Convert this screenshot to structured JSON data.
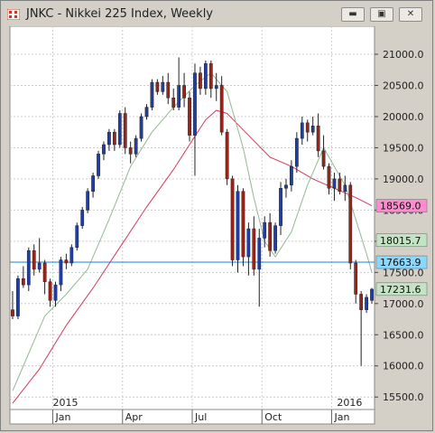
{
  "window": {
    "title": "JNKC - Nikkei 225 Index, Weekly",
    "icon": "app-icon",
    "buttons": [
      {
        "name": "minimize",
        "glyph": "▬"
      },
      {
        "name": "maximize",
        "glyph": "▣"
      },
      {
        "name": "close",
        "glyph": "✕"
      }
    ]
  },
  "chart_data": {
    "type": "candlestick",
    "ylim": [
      15300,
      21450
    ],
    "y_ticks": [
      "15500.0",
      "16000.0",
      "16500.0",
      "17000.0",
      "17500.0",
      "18000.0",
      "18500.0",
      "19000.0",
      "19500.0",
      "20000.0",
      "20500.0",
      "21000.0"
    ],
    "x_labels": [
      {
        "label": "Jan",
        "week": 8
      },
      {
        "label": "Apr",
        "week": 21
      },
      {
        "label": "Jul",
        "week": 34
      },
      {
        "label": "Oct",
        "week": 47
      },
      {
        "label": "Jan",
        "week": 60
      }
    ],
    "year_labels": [
      {
        "label": "2015",
        "week": 8
      },
      {
        "label": "2016",
        "week": 61
      }
    ],
    "price_tags": [
      {
        "value": "18569.0",
        "bg": "#ff8ccf"
      },
      {
        "value": "18015.7",
        "bg": "#c2e4c2"
      },
      {
        "value": "17663.9",
        "bg": "#8ad8ff"
      },
      {
        "value": "17231.6",
        "bg": "#c2e4c2"
      }
    ],
    "h_line": {
      "value": 17663.9,
      "color": "#1e82dc"
    },
    "colors": {
      "up": "#1f3ea8",
      "down": "#9b2318",
      "ma_fast": "#93b893",
      "ma_slow": "#d23b5a",
      "grid": "#cccccc"
    },
    "candles": [
      [
        16900,
        17200,
        16750,
        16800
      ],
      [
        16800,
        17450,
        16750,
        17400
      ],
      [
        17400,
        17600,
        17250,
        17300
      ],
      [
        17300,
        17900,
        17200,
        17850
      ],
      [
        17850,
        17950,
        17450,
        17550
      ],
      [
        17550,
        18050,
        17500,
        17650
      ],
      [
        17650,
        17700,
        17150,
        17350
      ],
      [
        17350,
        17400,
        16950,
        17050
      ],
      [
        17050,
        17350,
        16950,
        17300
      ],
      [
        17300,
        17750,
        17200,
        17700
      ],
      [
        17700,
        17800,
        17550,
        17650
      ],
      [
        17650,
        17950,
        17600,
        17900
      ],
      [
        17900,
        18300,
        17850,
        18250
      ],
      [
        18250,
        18550,
        18200,
        18500
      ],
      [
        18500,
        18850,
        18450,
        18800
      ],
      [
        18800,
        19100,
        18700,
        19050
      ],
      [
        19050,
        19450,
        19000,
        19400
      ],
      [
        19400,
        19600,
        19300,
        19550
      ],
      [
        19550,
        19800,
        19450,
        19750
      ],
      [
        19750,
        19800,
        19450,
        19550
      ],
      [
        19550,
        20100,
        19500,
        20050
      ],
      [
        20050,
        20150,
        19400,
        19500
      ],
      [
        19500,
        19600,
        19250,
        19400
      ],
      [
        19400,
        19700,
        19350,
        19650
      ],
      [
        19650,
        20050,
        19600,
        20000
      ],
      [
        20000,
        20200,
        19950,
        20150
      ],
      [
        20150,
        20600,
        20100,
        20550
      ],
      [
        20550,
        20600,
        20350,
        20400
      ],
      [
        20400,
        20650,
        20350,
        20550
      ],
      [
        20550,
        20700,
        20200,
        20300
      ],
      [
        20300,
        20450,
        20100,
        20150
      ],
      [
        20150,
        20950,
        20100,
        20500
      ],
      [
        20500,
        20700,
        20150,
        20300
      ],
      [
        20300,
        20400,
        19600,
        19700
      ],
      [
        19700,
        20850,
        19050,
        20700
      ],
      [
        20700,
        20800,
        20350,
        20450
      ],
      [
        20450,
        20900,
        20350,
        20850
      ],
      [
        20850,
        20900,
        20300,
        20450
      ],
      [
        20450,
        20700,
        20250,
        20500
      ],
      [
        20500,
        20650,
        19700,
        19750
      ],
      [
        19750,
        19800,
        18900,
        19000
      ],
      [
        19000,
        19050,
        17600,
        17700
      ],
      [
        17700,
        18900,
        17500,
        18800
      ],
      [
        18800,
        18850,
        17600,
        17750
      ],
      [
        17750,
        18300,
        17450,
        18200
      ],
      [
        18200,
        18400,
        17450,
        17550
      ],
      [
        17550,
        18200,
        16950,
        18050
      ],
      [
        18050,
        18400,
        17900,
        18300
      ],
      [
        18300,
        18450,
        17750,
        17850
      ],
      [
        17850,
        18300,
        17800,
        18250
      ],
      [
        18250,
        18950,
        18100,
        18850
      ],
      [
        18850,
        19000,
        18700,
        18900
      ],
      [
        18900,
        19300,
        18800,
        19200
      ],
      [
        19200,
        19750,
        19100,
        19650
      ],
      [
        19650,
        20000,
        19550,
        19900
      ],
      [
        19900,
        19950,
        19600,
        19750
      ],
      [
        19750,
        20000,
        19700,
        19850
      ],
      [
        19850,
        20050,
        19350,
        19450
      ],
      [
        19450,
        19700,
        19150,
        19200
      ],
      [
        19200,
        19250,
        18750,
        18850
      ],
      [
        18850,
        19100,
        18650,
        19000
      ],
      [
        19000,
        19100,
        18750,
        18800
      ],
      [
        18800,
        19050,
        18650,
        18900
      ],
      [
        18900,
        18950,
        17550,
        17650
      ],
      [
        17650,
        17700,
        17000,
        17150
      ],
      [
        17150,
        17200,
        16000,
        16900
      ],
      [
        16900,
        17150,
        16850,
        17100
      ],
      [
        17050,
        17250,
        17000,
        17230
      ]
    ],
    "ma_fast": [
      [
        0,
        15600
      ],
      [
        3,
        16200
      ],
      [
        6,
        16800
      ],
      [
        10,
        17150
      ],
      [
        14,
        17550
      ],
      [
        18,
        18350
      ],
      [
        22,
        19200
      ],
      [
        26,
        19750
      ],
      [
        30,
        20150
      ],
      [
        34,
        20500
      ],
      [
        37,
        20700
      ],
      [
        40,
        20400
      ],
      [
        43,
        19500
      ],
      [
        45,
        18700
      ],
      [
        47,
        18000
      ],
      [
        49,
        17750
      ],
      [
        52,
        18150
      ],
      [
        55,
        18900
      ],
      [
        58,
        19500
      ],
      [
        60,
        19200
      ],
      [
        62,
        18900
      ],
      [
        64,
        18350
      ],
      [
        66,
        17800
      ],
      [
        67,
        17500
      ]
    ],
    "ma_slow": [
      [
        0,
        15400
      ],
      [
        5,
        15950
      ],
      [
        10,
        16650
      ],
      [
        15,
        17250
      ],
      [
        20,
        17900
      ],
      [
        25,
        18550
      ],
      [
        30,
        19150
      ],
      [
        33,
        19550
      ],
      [
        36,
        19950
      ],
      [
        38,
        20100
      ],
      [
        40,
        20050
      ],
      [
        44,
        19700
      ],
      [
        48,
        19350
      ],
      [
        52,
        19200
      ],
      [
        56,
        19000
      ],
      [
        60,
        18850
      ],
      [
        64,
        18700
      ],
      [
        67,
        18570
      ]
    ]
  }
}
